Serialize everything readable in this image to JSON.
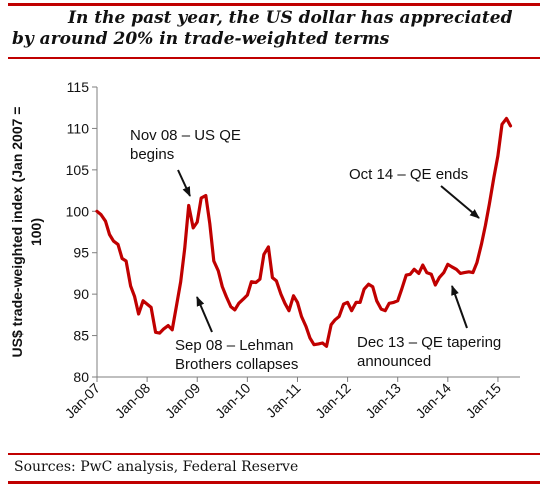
{
  "title": {
    "line1": "In the past year, the US dollar has appreciated",
    "line2": "by around 20% in trade-weighted terms"
  },
  "source": "Sources: PwC analysis, Federal Reserve",
  "colors": {
    "accent": "#c00000",
    "line": "#c00000",
    "text": "#111111"
  },
  "chart_data": {
    "type": "line",
    "ylabel": "US$ trade-weighted index (Jan 2007 = 100)",
    "ylabel_lines": [
      "US$ trade-weighted index (Jan 2007 =",
      "100)"
    ],
    "xlabel": "",
    "ylim": [
      80,
      115
    ],
    "yticks": [
      80,
      85,
      90,
      95,
      100,
      105,
      110,
      115
    ],
    "xticks": [
      {
        "t": 2007.0,
        "label": "Jan-07"
      },
      {
        "t": 2008.0,
        "label": "Jan-08"
      },
      {
        "t": 2009.0,
        "label": "Jan-09"
      },
      {
        "t": 2010.0,
        "label": "Jan-10"
      },
      {
        "t": 2011.0,
        "label": "Jan-11"
      },
      {
        "t": 2012.0,
        "label": "Jan-12"
      },
      {
        "t": 2013.0,
        "label": "Jan-13"
      },
      {
        "t": 2014.0,
        "label": "Jan-14"
      },
      {
        "t": 2015.0,
        "label": "Jan-15"
      }
    ],
    "grid": false,
    "legend": "none",
    "series": [
      {
        "points": [
          [
            2007.0,
            100.0
          ],
          [
            2007.08,
            99.6
          ],
          [
            2007.17,
            98.8
          ],
          [
            2007.25,
            97.2
          ],
          [
            2007.33,
            96.4
          ],
          [
            2007.42,
            96.0
          ],
          [
            2007.5,
            94.3
          ],
          [
            2007.58,
            94.0
          ],
          [
            2007.67,
            91.0
          ],
          [
            2007.75,
            89.7
          ],
          [
            2007.83,
            87.6
          ],
          [
            2007.92,
            89.2
          ],
          [
            2008.0,
            88.8
          ],
          [
            2008.08,
            88.4
          ],
          [
            2008.17,
            85.4
          ],
          [
            2008.25,
            85.3
          ],
          [
            2008.33,
            85.8
          ],
          [
            2008.42,
            86.2
          ],
          [
            2008.5,
            85.7
          ],
          [
            2008.58,
            88.4
          ],
          [
            2008.67,
            91.5
          ],
          [
            2008.75,
            95.5
          ],
          [
            2008.83,
            100.7
          ],
          [
            2008.92,
            98.0
          ],
          [
            2009.0,
            98.7
          ],
          [
            2009.08,
            101.6
          ],
          [
            2009.17,
            101.9
          ],
          [
            2009.25,
            98.5
          ],
          [
            2009.33,
            94.0
          ],
          [
            2009.42,
            92.8
          ],
          [
            2009.5,
            90.9
          ],
          [
            2009.58,
            89.7
          ],
          [
            2009.67,
            88.5
          ],
          [
            2009.75,
            88.1
          ],
          [
            2009.83,
            88.9
          ],
          [
            2009.92,
            89.4
          ],
          [
            2010.0,
            89.9
          ],
          [
            2010.08,
            91.5
          ],
          [
            2010.17,
            91.4
          ],
          [
            2010.25,
            91.8
          ],
          [
            2010.33,
            94.8
          ],
          [
            2010.42,
            95.7
          ],
          [
            2010.5,
            92.0
          ],
          [
            2010.58,
            91.6
          ],
          [
            2010.67,
            90.0
          ],
          [
            2010.75,
            88.9
          ],
          [
            2010.83,
            88.0
          ],
          [
            2010.92,
            89.8
          ],
          [
            2011.0,
            89.0
          ],
          [
            2011.08,
            87.3
          ],
          [
            2011.17,
            86.1
          ],
          [
            2011.25,
            84.7
          ],
          [
            2011.33,
            83.9
          ],
          [
            2011.42,
            84.0
          ],
          [
            2011.5,
            84.1
          ],
          [
            2011.58,
            83.7
          ],
          [
            2011.67,
            86.3
          ],
          [
            2011.75,
            86.9
          ],
          [
            2011.83,
            87.3
          ],
          [
            2011.92,
            88.8
          ],
          [
            2012.0,
            89.0
          ],
          [
            2012.08,
            88.0
          ],
          [
            2012.17,
            89.0
          ],
          [
            2012.25,
            89.0
          ],
          [
            2012.33,
            90.6
          ],
          [
            2012.42,
            91.2
          ],
          [
            2012.5,
            90.9
          ],
          [
            2012.58,
            89.2
          ],
          [
            2012.67,
            88.2
          ],
          [
            2012.75,
            88.0
          ],
          [
            2012.83,
            88.9
          ],
          [
            2012.92,
            89.0
          ],
          [
            2013.0,
            89.2
          ],
          [
            2013.08,
            90.6
          ],
          [
            2013.17,
            92.3
          ],
          [
            2013.25,
            92.4
          ],
          [
            2013.33,
            93.0
          ],
          [
            2013.42,
            92.5
          ],
          [
            2013.5,
            93.5
          ],
          [
            2013.58,
            92.6
          ],
          [
            2013.67,
            92.4
          ],
          [
            2013.75,
            91.1
          ],
          [
            2013.83,
            92.0
          ],
          [
            2013.92,
            92.6
          ],
          [
            2014.0,
            93.6
          ],
          [
            2014.08,
            93.3
          ],
          [
            2014.17,
            93.0
          ],
          [
            2014.25,
            92.5
          ],
          [
            2014.33,
            92.6
          ],
          [
            2014.42,
            92.7
          ],
          [
            2014.5,
            92.6
          ],
          [
            2014.58,
            93.8
          ],
          [
            2014.67,
            96.0
          ],
          [
            2014.75,
            98.3
          ],
          [
            2014.83,
            100.9
          ],
          [
            2014.92,
            104.1
          ],
          [
            2015.0,
            106.7
          ],
          [
            2015.08,
            110.5
          ],
          [
            2015.17,
            111.2
          ],
          [
            2015.25,
            110.3
          ]
        ]
      }
    ],
    "annotations": [
      {
        "id": "us-qe-begins",
        "lines": [
          "Nov 08 – US QE",
          "begins"
        ]
      },
      {
        "id": "lehman",
        "lines": [
          "Sep 08 – Lehman",
          "Brothers collapses"
        ]
      },
      {
        "id": "qe-ends",
        "lines": [
          "Oct 14 – QE ends"
        ]
      },
      {
        "id": "qe-tapering",
        "lines": [
          "Dec 13 – QE tapering",
          "announced"
        ]
      }
    ]
  }
}
